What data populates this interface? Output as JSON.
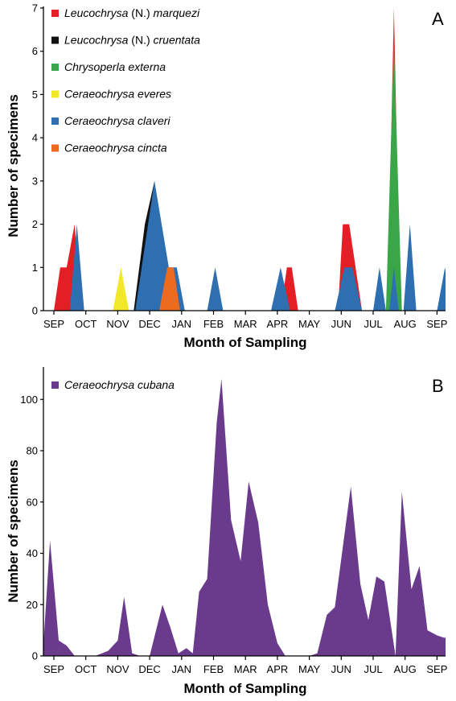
{
  "chart_data": [
    {
      "panel": "A",
      "type": "area",
      "xlabel": "Month of Sampling",
      "ylabel": "Number of specimens",
      "x_ticks": [
        "SEP",
        "OCT",
        "NOV",
        "DEC",
        "JAN",
        "FEB",
        "MAR",
        "APR",
        "MAY",
        "JUN",
        "JUL",
        "AUG",
        "SEP"
      ],
      "xlim": [
        0,
        12.5
      ],
      "ylim": [
        0,
        7
      ],
      "y_ticks": [
        0,
        1,
        2,
        3,
        4,
        5,
        6,
        7
      ],
      "legend_placement": "top-left",
      "series": [
        {
          "name": "Leucochrysa (N.) marquezi",
          "color": "#e31e24",
          "points": [
            [
              0,
              0
            ],
            [
              0.2,
              1
            ],
            [
              0.4,
              1
            ],
            [
              0.65,
              2
            ],
            [
              0.85,
              0
            ],
            [
              7.1,
              0
            ],
            [
              7.3,
              1
            ],
            [
              7.45,
              1
            ],
            [
              7.65,
              0
            ],
            [
              8.9,
              0
            ],
            [
              9.05,
              2
            ],
            [
              9.25,
              2
            ],
            [
              9.65,
              0
            ],
            [
              10.45,
              0
            ],
            [
              10.65,
              7
            ],
            [
              10.85,
              0
            ]
          ]
        },
        {
          "name": "Leucochrysa (N.) cruentata",
          "color": "#111111",
          "points": [
            [
              2.5,
              0
            ],
            [
              2.85,
              2
            ],
            [
              3.15,
              3
            ],
            [
              3.3,
              0
            ]
          ]
        },
        {
          "name": "Chrysoperla externa",
          "color": "#3aa648",
          "points": [
            [
              10.4,
              0
            ],
            [
              10.65,
              6.2
            ],
            [
              10.9,
              0
            ]
          ]
        },
        {
          "name": "Ceraeochrysa everes",
          "color": "#f2e82a",
          "points": [
            [
              1.85,
              0
            ],
            [
              2.1,
              1
            ],
            [
              2.35,
              0
            ]
          ]
        },
        {
          "name": "Ceraeochrysa claveri",
          "color": "#2d6fb0",
          "points": [
            [
              0.5,
              0
            ],
            [
              0.72,
              2
            ],
            [
              0.95,
              0
            ],
            [
              2.55,
              0
            ],
            [
              3.15,
              3
            ],
            [
              3.6,
              1
            ],
            [
              3.85,
              1
            ],
            [
              4.1,
              0
            ],
            [
              4.8,
              0
            ],
            [
              5.05,
              1
            ],
            [
              5.3,
              0
            ],
            [
              6.8,
              0
            ],
            [
              7.1,
              1
            ],
            [
              7.4,
              0
            ],
            [
              8.8,
              0
            ],
            [
              9.1,
              1
            ],
            [
              9.35,
              1
            ],
            [
              9.65,
              0
            ],
            [
              10.0,
              0
            ],
            [
              10.2,
              1
            ],
            [
              10.4,
              0
            ],
            [
              10.5,
              0
            ],
            [
              10.65,
              1
            ],
            [
              10.8,
              0
            ],
            [
              10.95,
              0
            ],
            [
              11.15,
              2
            ],
            [
              11.35,
              0
            ],
            [
              12.0,
              0
            ],
            [
              12.25,
              1
            ],
            [
              12.5,
              0
            ]
          ]
        },
        {
          "name": "Ceraeochrysa cincta",
          "color": "#ec6b1e",
          "points": [
            [
              3.3,
              0
            ],
            [
              3.55,
              1
            ],
            [
              3.75,
              1
            ],
            [
              3.95,
              0
            ]
          ]
        }
      ]
    },
    {
      "panel": "B",
      "type": "area",
      "xlabel": "Month of Sampling",
      "ylabel": "Number of specimens",
      "x_ticks": [
        "SEP",
        "OCT",
        "NOV",
        "DEC",
        "JAN",
        "FEB",
        "MAR",
        "APR",
        "MAY",
        "JUN",
        "JUL",
        "AUG",
        "SEP"
      ],
      "xlim": [
        0,
        12.5
      ],
      "ylim": [
        0,
        112
      ],
      "y_ticks": [
        0,
        20,
        40,
        60,
        80,
        100
      ],
      "legend_placement": "top-left",
      "series": [
        {
          "name": "Ceraeochrysa cubana",
          "color": "#6a3a8c",
          "points": [
            [
              -0.35,
              0
            ],
            [
              -0.12,
              45
            ],
            [
              0.15,
              6
            ],
            [
              0.4,
              4
            ],
            [
              0.65,
              0
            ],
            [
              1.3,
              0
            ],
            [
              1.7,
              2
            ],
            [
              2.0,
              6
            ],
            [
              2.2,
              23
            ],
            [
              2.45,
              1
            ],
            [
              2.7,
              0
            ],
            [
              3.0,
              0
            ],
            [
              3.4,
              20
            ],
            [
              3.65,
              11
            ],
            [
              3.9,
              1
            ],
            [
              4.15,
              3
            ],
            [
              4.35,
              1
            ],
            [
              4.55,
              25
            ],
            [
              4.8,
              30
            ],
            [
              5.1,
              91
            ],
            [
              5.25,
              108
            ],
            [
              5.55,
              53
            ],
            [
              5.85,
              37
            ],
            [
              6.1,
              68
            ],
            [
              6.4,
              52
            ],
            [
              6.7,
              20
            ],
            [
              7.0,
              5
            ],
            [
              7.25,
              0
            ],
            [
              8.0,
              0
            ],
            [
              8.25,
              1
            ],
            [
              8.55,
              16
            ],
            [
              8.8,
              19
            ],
            [
              9.3,
              66
            ],
            [
              9.6,
              28
            ],
            [
              9.85,
              14
            ],
            [
              10.1,
              31
            ],
            [
              10.35,
              29
            ],
            [
              10.7,
              0
            ],
            [
              10.9,
              64
            ],
            [
              11.2,
              26
            ],
            [
              11.45,
              35
            ],
            [
              11.7,
              10
            ],
            [
              12.0,
              8
            ],
            [
              12.25,
              7
            ],
            [
              12.5,
              15
            ],
            [
              12.75,
              12
            ],
            [
              13.0,
              0
            ]
          ]
        }
      ]
    }
  ],
  "panels": {
    "a": {
      "letter": "A",
      "ylabel": "Number of specimens",
      "xlabel": "Month of Sampling",
      "legend": [
        {
          "pre": "Leucochrysa",
          "mid": " (N.) ",
          "post": "marquezi"
        },
        {
          "pre": "Leucochrysa",
          "mid": " (N.) ",
          "post": "cruentata"
        },
        {
          "pre": "Chrysoperla externa",
          "mid": "",
          "post": ""
        },
        {
          "pre": "Ceraeochrysa everes",
          "mid": "",
          "post": ""
        },
        {
          "pre": "Ceraeochrysa claveri",
          "mid": "",
          "post": ""
        },
        {
          "pre": "Ceraeochrysa cincta",
          "mid": "",
          "post": ""
        }
      ]
    },
    "b": {
      "letter": "B",
      "ylabel": "Number of specimens",
      "xlabel": "Month of Sampling",
      "legend": [
        {
          "pre": "Ceraeochrysa cubana",
          "mid": "",
          "post": ""
        }
      ]
    }
  }
}
